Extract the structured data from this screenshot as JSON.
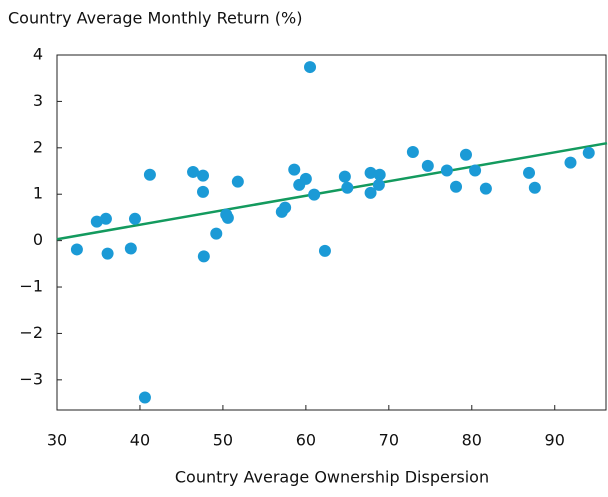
{
  "chart_data": {
    "type": "scatter",
    "ylabel": "Country Average Monthly Return (%)",
    "xlabel": "Country Average Ownership Dispersion",
    "xlim": [
      30,
      96.3
    ],
    "ylim": [
      -3.65,
      4
    ],
    "xticks": [
      30,
      40,
      50,
      60,
      70,
      80,
      90
    ],
    "yticks": [
      {
        "value": -3,
        "label": "−3"
      },
      {
        "value": -2,
        "label": "−2"
      },
      {
        "value": -1,
        "label": "−1"
      },
      0,
      1,
      2,
      3,
      4
    ],
    "grid": false,
    "series": [
      {
        "color": "#1b9ad6",
        "x": [
          32.4,
          34.8,
          35.9,
          36.1,
          38.9,
          39.4,
          41.2,
          40.6,
          46.4,
          47.6,
          47.6,
          47.7,
          49.2,
          50.4,
          50.6,
          51.8,
          57.1,
          57.5,
          58.6,
          59.2,
          60.0,
          60.5,
          61.0,
          62.3,
          64.7,
          65.0,
          67.8,
          67.8,
          68.9,
          68.8,
          72.9,
          74.7,
          77.0,
          78.1,
          79.3,
          80.4,
          81.7,
          86.9,
          87.6,
          91.9,
          94.1
        ],
        "values": [
          -0.19,
          0.41,
          0.47,
          -0.28,
          -0.17,
          0.47,
          1.42,
          -3.38,
          1.48,
          1.4,
          1.05,
          -0.34,
          0.15,
          0.56,
          0.49,
          1.27,
          0.62,
          0.71,
          1.53,
          1.2,
          1.33,
          3.74,
          0.99,
          -0.22,
          1.38,
          1.14,
          1.46,
          1.03,
          1.42,
          1.2,
          1.91,
          1.61,
          1.51,
          1.16,
          1.85,
          1.51,
          1.12,
          1.46,
          1.14,
          1.68,
          1.89
        ]
      }
    ],
    "fit_line": {
      "color": "#139a5e",
      "x": [
        30,
        96.3
      ],
      "values": [
        0.03,
        2.1
      ]
    }
  }
}
